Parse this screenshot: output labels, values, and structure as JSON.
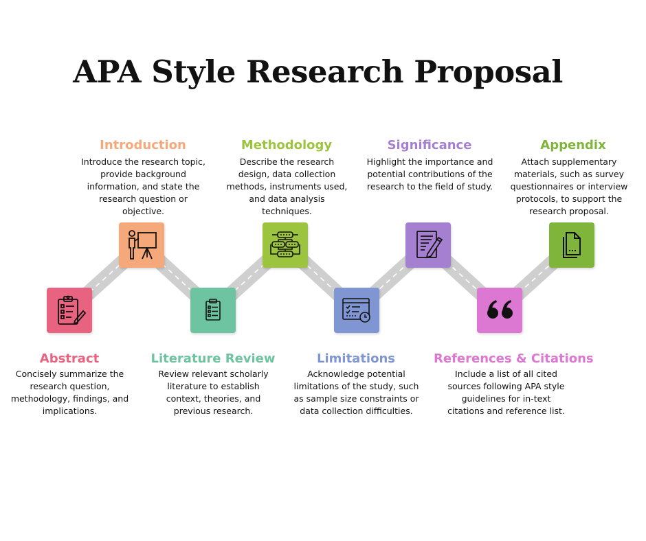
{
  "title": "APA Style Research Proposal",
  "steps": [
    {
      "name": "Abstract",
      "color": "#e8637f",
      "icon": "clipboard-checklist-icon",
      "description": "Concisely summarize the research question, methodology, findings, and implications."
    },
    {
      "name": "Introduction",
      "color": "#f5a97a",
      "icon": "presenter-board-icon",
      "description": "Introduce the research topic, provide background information, and state the research question or objective."
    },
    {
      "name": "Literature Review",
      "color": "#6ec4a0",
      "icon": "clipboard-list-icon",
      "description": "Review relevant scholarly literature to establish context, theories, and previous research."
    },
    {
      "name": "Methodology",
      "color": "#9cc43e",
      "icon": "flowchart-icon",
      "description": "Describe the research design, data collection methods, instruments used, and data analysis techniques."
    },
    {
      "name": "Limitations",
      "color": "#8096d2",
      "icon": "checklist-clock-icon",
      "description": "Acknowledge potential limitations of the study, such as sample size constraints or data collection difficulties."
    },
    {
      "name": "Significance",
      "color": "#a57fd0",
      "icon": "document-pen-icon",
      "description": "Highlight the importance and potential contributions of the research to the field of study."
    },
    {
      "name": "References & Citations",
      "color": "#dc78d2",
      "icon": "quotation-marks-icon",
      "description": "Include a list of all cited sources following APA style guidelines for in-text citations and reference list."
    },
    {
      "name": "Appendix",
      "color": "#7fb53a",
      "icon": "documents-icon",
      "description": "Attach supplementary materials, such as survey questionnaires or interview protocols, to support the research proposal."
    }
  ]
}
